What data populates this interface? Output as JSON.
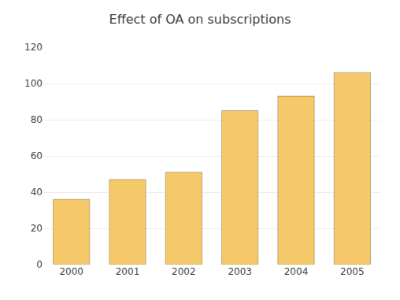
{
  "chart_data": {
    "type": "bar",
    "title": "Effect of OA on subscriptions",
    "categories": [
      "2000",
      "2001",
      "2002",
      "2003",
      "2004",
      "2005"
    ],
    "values": [
      36,
      47,
      51,
      85,
      93,
      106
    ],
    "color": "#F5C96A",
    "ylim": [
      0,
      120
    ],
    "yticks": [
      0,
      20,
      40,
      60,
      80,
      100,
      120
    ],
    "grid": true
  }
}
